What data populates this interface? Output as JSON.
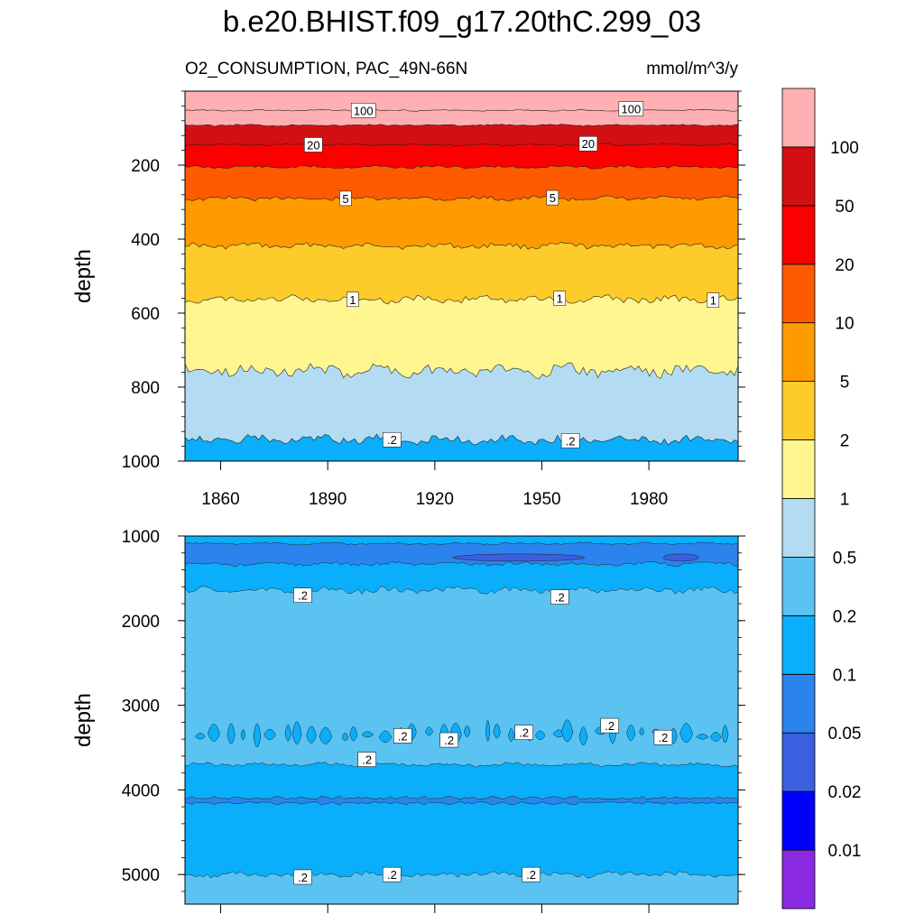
{
  "chart_data": {
    "type": "heatmap",
    "subtype": "filled-contour",
    "title": "b.e20.BHIST.f09_g17.20thC.299_03",
    "subtitle_left": "O2_CONSUMPTION, PAC_49N-66N",
    "subtitle_right": "mmol/m^3/y",
    "xlabel": "",
    "ylabel": "depth",
    "x_range": [
      1850,
      2005
    ],
    "x_ticks": [
      1860,
      1890,
      1920,
      1950,
      1980
    ],
    "x_tick_labels": [
      "1860",
      "1890",
      "1920",
      "1950",
      "1980"
    ],
    "colorbar": {
      "levels": [
        0.01,
        0.02,
        0.05,
        0.1,
        0.2,
        0.5,
        1,
        2,
        5,
        10,
        20,
        50,
        100
      ],
      "labels": [
        "0.01",
        "0.02",
        "0.05",
        "0.1",
        "0.2",
        "0.5",
        "1",
        "2",
        "5",
        "10",
        "20",
        "50",
        "100"
      ],
      "colors": [
        "#8a2be2",
        "#0000ff",
        "#3a5fe0",
        "#2b84ee",
        "#0aaefa",
        "#5ac3f2",
        "#b3dcf2",
        "#fff68f",
        "#fdcb2a",
        "#ff9b00",
        "#fe5a00",
        "#fc0000",
        "#d21014",
        "#ffb0b2"
      ]
    },
    "panels": [
      {
        "name": "upper",
        "depth_range": [
          0,
          1000
        ],
        "y_ticks": [
          200,
          400,
          600,
          800,
          1000
        ],
        "y_tick_labels": [
          "200",
          "400",
          "600",
          "800",
          "1000"
        ],
        "boundaries": [
          {
            "level": 100,
            "mean_depth": 52,
            "amp": 2,
            "seed": 3
          },
          {
            "level": 50,
            "mean_depth": 92,
            "amp": 2.5,
            "seed": 5
          },
          {
            "level": 20,
            "mean_depth": 145,
            "amp": 3,
            "seed": 7
          },
          {
            "level": 10,
            "mean_depth": 205,
            "amp": 4,
            "seed": 11
          },
          {
            "level": 5,
            "mean_depth": 290,
            "amp": 6,
            "seed": 13
          },
          {
            "level": 2,
            "mean_depth": 418,
            "amp": 8,
            "seed": 17
          },
          {
            "level": 1,
            "mean_depth": 563,
            "amp": 10,
            "seed": 19
          },
          {
            "level": 0.5,
            "mean_depth": 755,
            "amp": 18,
            "seed": 23
          },
          {
            "level": 0.2,
            "mean_depth": 942,
            "amp": 12,
            "seed": 29
          }
        ],
        "contour_labels": [
          {
            "text": "100",
            "x": 1900,
            "depth": 52
          },
          {
            "text": "100",
            "x": 1975,
            "depth": 48
          },
          {
            "text": "20",
            "x": 1886,
            "depth": 145
          },
          {
            "text": "20",
            "x": 1963,
            "depth": 142
          },
          {
            "text": "5",
            "x": 1895,
            "depth": 290
          },
          {
            "text": "5",
            "x": 1953,
            "depth": 288
          },
          {
            "text": "1",
            "x": 1897,
            "depth": 563
          },
          {
            "text": "1",
            "x": 1955,
            "depth": 560
          },
          {
            "text": "1",
            "x": 1998,
            "depth": 565
          },
          {
            "text": ".2",
            "x": 1908,
            "depth": 942
          },
          {
            "text": ".2",
            "x": 1958,
            "depth": 945
          }
        ]
      },
      {
        "name": "lower",
        "depth_range": [
          1000,
          5350
        ],
        "y_ticks": [
          1000,
          2000,
          3000,
          4000,
          5000
        ],
        "y_tick_labels": [
          "1000",
          "2000",
          "3000",
          "4000",
          "5000"
        ],
        "top_band_end_depth": 1330,
        "lower_band_end_depth": 1640,
        "mid_band_end_depth": 3700,
        "deep_band_end_depth": 5000,
        "contour_labels": [
          {
            "text": ".2",
            "x": 1883,
            "depth": 1700
          },
          {
            "text": ".2",
            "x": 1955,
            "depth": 1720
          },
          {
            "text": ".2",
            "x": 1911,
            "depth": 3360
          },
          {
            "text": ".2",
            "x": 1924,
            "depth": 3410
          },
          {
            "text": ".2",
            "x": 1945,
            "depth": 3320
          },
          {
            "text": ".2",
            "x": 1969,
            "depth": 3240
          },
          {
            "text": ".2",
            "x": 1984,
            "depth": 3380
          },
          {
            "text": ".2",
            "x": 1901,
            "depth": 3640
          },
          {
            "text": ".2",
            "x": 1883,
            "depth": 5030
          },
          {
            "text": ".2",
            "x": 1908,
            "depth": 5000
          },
          {
            "text": ".2",
            "x": 1947,
            "depth": 5000
          }
        ]
      }
    ]
  }
}
